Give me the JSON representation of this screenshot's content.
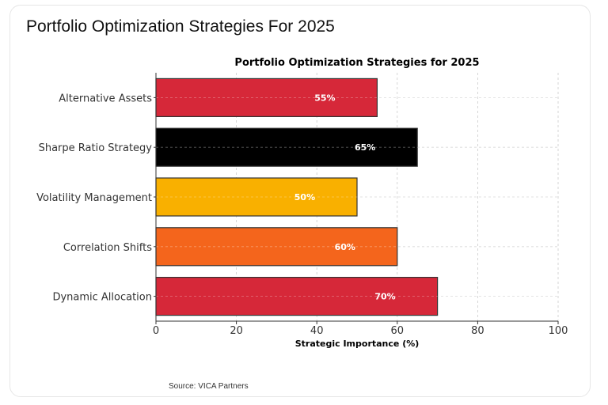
{
  "header": {
    "title": "Portfolio Optimization Strategies For 2025"
  },
  "footer": {
    "source": "Source: VICA Partners"
  },
  "chart_data": {
    "type": "bar",
    "orientation": "horizontal",
    "title": "Portfolio Optimization Strategies for 2025",
    "xlabel": "Strategic Importance (%)",
    "ylabel": "",
    "xlim": [
      0,
      100
    ],
    "xticks": [
      0,
      20,
      40,
      60,
      80,
      100
    ],
    "grid": true,
    "categories": [
      "Alternative Assets",
      "Sharpe Ratio Strategy",
      "Volatility Management",
      "Correlation Shifts",
      "Dynamic Allocation"
    ],
    "values": [
      55,
      65,
      50,
      60,
      70
    ],
    "data_labels": [
      "55%",
      "65%",
      "50%",
      "60%",
      "70%"
    ],
    "colors": [
      "#d62839",
      "#000000",
      "#f9b000",
      "#f4651c",
      "#d62839"
    ]
  }
}
